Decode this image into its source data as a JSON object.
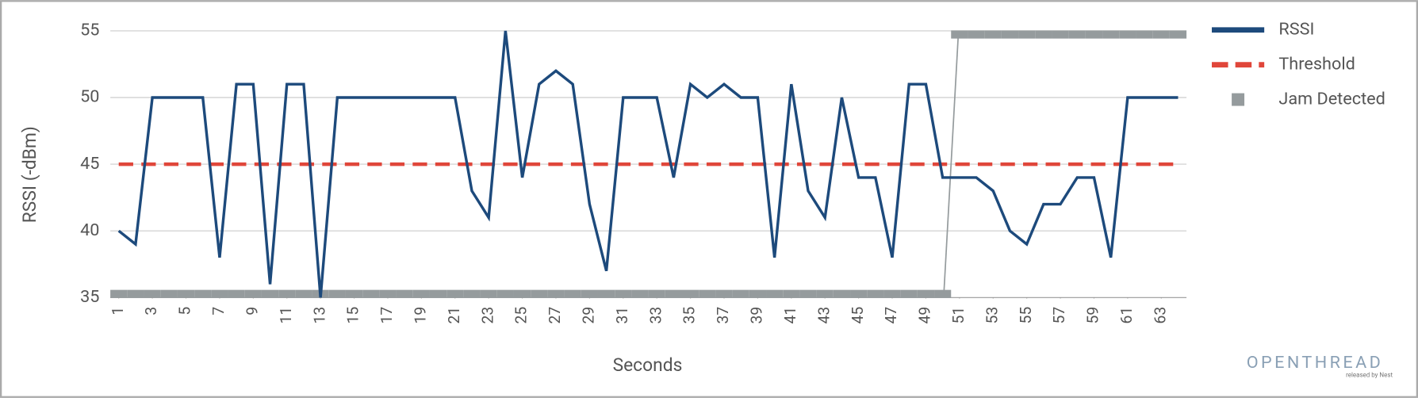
{
  "chart_data": {
    "type": "line",
    "x_label": "Seconds",
    "y_label": "RSSI (-dBm)",
    "x": [
      1,
      2,
      3,
      4,
      5,
      6,
      7,
      8,
      9,
      10,
      11,
      12,
      13,
      14,
      15,
      16,
      17,
      18,
      19,
      20,
      21,
      22,
      23,
      24,
      25,
      26,
      27,
      28,
      29,
      30,
      31,
      32,
      33,
      34,
      35,
      36,
      37,
      38,
      39,
      40,
      41,
      42,
      43,
      44,
      45,
      46,
      47,
      48,
      49,
      50,
      51,
      52,
      53,
      54,
      55,
      56,
      57,
      58,
      59,
      60,
      61,
      62,
      63,
      64
    ],
    "xlim": [
      0.5,
      64.5
    ],
    "xticks": [
      1,
      3,
      5,
      7,
      9,
      11,
      13,
      15,
      17,
      19,
      21,
      23,
      25,
      27,
      29,
      31,
      33,
      35,
      37,
      39,
      41,
      43,
      45,
      47,
      49,
      51,
      53,
      55,
      57,
      59,
      61,
      63
    ],
    "ylim": [
      35,
      55
    ],
    "yticks": [
      35,
      40,
      45,
      50,
      55
    ],
    "y2lim": [
      0,
      1
    ],
    "grid": true,
    "legend": "right",
    "series": [
      {
        "name": "RSSI",
        "color": "#1d4a7c",
        "style": "solid",
        "values": [
          40,
          39,
          50,
          50,
          50,
          50,
          38,
          51,
          51,
          36,
          51,
          51,
          35,
          50,
          50,
          50,
          50,
          50,
          50,
          50,
          50,
          43,
          41,
          55,
          44,
          51,
          52,
          51,
          42,
          37,
          50,
          50,
          50,
          44,
          51,
          50,
          51,
          50,
          50,
          38,
          51,
          43,
          41,
          50,
          44,
          44,
          38,
          51,
          51,
          44,
          44,
          44,
          43,
          40,
          39,
          42,
          42,
          44,
          44,
          38,
          50,
          50,
          50,
          50
        ]
      },
      {
        "name": "Threshold",
        "color": "#e0463a",
        "style": "dashed",
        "values": [
          45,
          45,
          45,
          45,
          45,
          45,
          45,
          45,
          45,
          45,
          45,
          45,
          45,
          45,
          45,
          45,
          45,
          45,
          45,
          45,
          45,
          45,
          45,
          45,
          45,
          45,
          45,
          45,
          45,
          45,
          45,
          45,
          45,
          45,
          45,
          45,
          45,
          45,
          45,
          45,
          45,
          45,
          45,
          45,
          45,
          45,
          45,
          45,
          45,
          45,
          45,
          45,
          45,
          45,
          45,
          45,
          45,
          45,
          45,
          45,
          45,
          45,
          45,
          45
        ]
      },
      {
        "name": "Jam Detected",
        "color": "#959b9d",
        "style": "band",
        "axis": "y2",
        "values": [
          0,
          0,
          0,
          0,
          0,
          0,
          0,
          0,
          0,
          0,
          0,
          0,
          0,
          0,
          0,
          0,
          0,
          0,
          0,
          0,
          0,
          0,
          0,
          0,
          0,
          0,
          0,
          0,
          0,
          0,
          0,
          0,
          0,
          0,
          0,
          0,
          0,
          0,
          0,
          0,
          0,
          0,
          0,
          0,
          0,
          0,
          0,
          0,
          0,
          0,
          1,
          1,
          1,
          1,
          1,
          1,
          1,
          1,
          1,
          1,
          1,
          1,
          1,
          1
        ]
      }
    ]
  },
  "logo": {
    "name": "OPENTHREAD",
    "tagline": "released by Nest"
  }
}
